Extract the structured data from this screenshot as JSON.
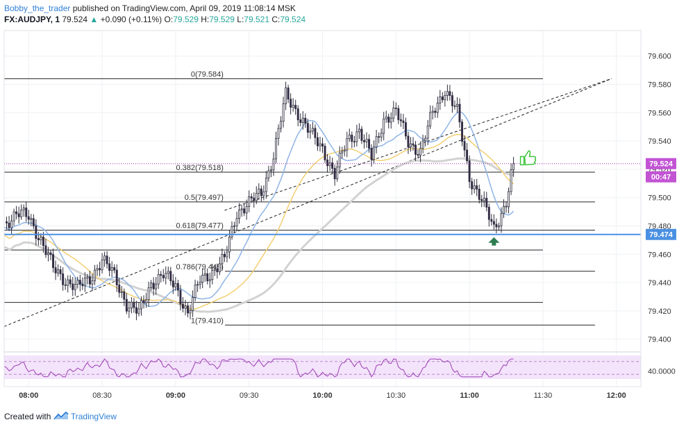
{
  "header": {
    "author": "Bobby_the_trader",
    "published": "published on TradingView.com, April 09, 2019 11:08:14 MSK",
    "symbol": "FX:AUDJPY, 1",
    "last": "79.524",
    "change": "+0.090 (+0.11%)",
    "o_label": "O:",
    "o_value": "79.529",
    "h_label": "H:",
    "h_value": "79.529",
    "l_label": "L:",
    "l_value": "79.521",
    "c_label": "C:",
    "c_value": "79.524"
  },
  "footer": {
    "created_with": "Created with",
    "brand": "TradingView"
  },
  "colors": {
    "bull_body": "#ffffff",
    "bear_body": "#3b2b4e",
    "wick": "#2a2a3a",
    "ma_blue": "#8fb4e6",
    "ma_yellow": "#f2cf72",
    "ma_grey": "#d2d2d2",
    "fib_line": "#222222",
    "support_line": "#4a90e2",
    "price_line": "#9c27b0",
    "rsi_line": "#9c3fb3",
    "rsi_band": "#f3e3fb",
    "up_arrow": "#2e7d52",
    "thumb": "#3cc43c"
  },
  "chart_data": {
    "type": "candlestick",
    "title": "",
    "symbol": "FX:AUDJPY, 1",
    "x_axis": {
      "ticks": [
        "08:00",
        "08:30",
        "09:00",
        "09:30",
        "10:00",
        "10:30",
        "11:00",
        "11:30",
        "12:00"
      ],
      "range": [
        "07:50",
        "12:10"
      ]
    },
    "y_axis": {
      "ticks": [
        "79.400",
        "79.420",
        "79.440",
        "79.460",
        "79.480",
        "79.500",
        "79.520",
        "79.540",
        "79.560",
        "79.580",
        "79.600"
      ],
      "range": [
        79.392,
        79.618
      ]
    },
    "current_price": {
      "value": 79.524,
      "label": "79.524",
      "countdown": "00:47"
    },
    "support_line": {
      "value": 79.474,
      "label": "79.474"
    },
    "fibonacci": [
      {
        "level": "0",
        "price": 79.584,
        "label": "0(79.584)"
      },
      {
        "level": "0.382",
        "price": 79.518,
        "label": "0.382(79.518)"
      },
      {
        "level": "0.5",
        "price": 79.497,
        "label": "0.5(79.497)"
      },
      {
        "level": "0.618",
        "price": 79.477,
        "label": "0.618(79.477)"
      },
      {
        "level": "0.786",
        "price": 79.448,
        "label": "0.786(79.448)"
      },
      {
        "level": "1",
        "price": 79.41,
        "label": "1(79.410)"
      }
    ],
    "extra_levels": [
      79.463,
      79.426
    ],
    "trendlines": [
      {
        "from": [
          "07:50",
          79.409
        ],
        "to": [
          "11:58",
          79.584
        ]
      },
      {
        "from": [
          "09:20",
          79.491
        ],
        "to": [
          "11:58",
          79.584
        ]
      }
    ],
    "key_points": [
      [
        "07:50",
        79.482
      ],
      [
        "07:55",
        79.488
      ],
      [
        "08:00",
        79.487
      ],
      [
        "08:05",
        79.47
      ],
      [
        "08:10",
        79.45
      ],
      [
        "08:15",
        79.442
      ],
      [
        "08:20",
        79.436
      ],
      [
        "08:25",
        79.443
      ],
      [
        "08:30",
        79.456
      ],
      [
        "08:35",
        79.445
      ],
      [
        "08:40",
        79.425
      ],
      [
        "08:45",
        79.418
      ],
      [
        "08:50",
        79.44
      ],
      [
        "08:55",
        79.445
      ],
      [
        "09:00",
        79.438
      ],
      [
        "09:05",
        79.418
      ],
      [
        "09:10",
        79.442
      ],
      [
        "09:15",
        79.448
      ],
      [
        "09:20",
        79.456
      ],
      [
        "09:25",
        79.49
      ],
      [
        "09:30",
        79.496
      ],
      [
        "09:35",
        79.503
      ],
      [
        "09:40",
        79.53
      ],
      [
        "09:45",
        79.572
      ],
      [
        "09:50",
        79.56
      ],
      [
        "09:55",
        79.545
      ],
      [
        "10:00",
        79.535
      ],
      [
        "10:05",
        79.516
      ],
      [
        "10:10",
        79.54
      ],
      [
        "10:15",
        79.548
      ],
      [
        "10:20",
        79.528
      ],
      [
        "10:25",
        79.556
      ],
      [
        "10:30",
        79.56
      ],
      [
        "10:35",
        79.54
      ],
      [
        "10:40",
        79.532
      ],
      [
        "10:45",
        79.56
      ],
      [
        "10:50",
        79.577
      ],
      [
        "10:55",
        79.56
      ],
      [
        "11:00",
        79.515
      ],
      [
        "11:05",
        79.498
      ],
      [
        "11:10",
        79.478
      ],
      [
        "11:15",
        79.497
      ],
      [
        "11:18",
        79.524
      ]
    ],
    "rsi": {
      "reference_label": "40.0000",
      "upper_band": 70,
      "lower_band": 30
    }
  }
}
